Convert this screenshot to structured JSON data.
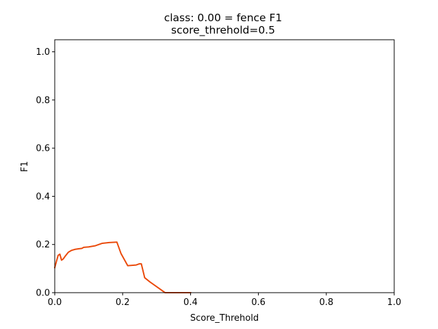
{
  "chart_data": {
    "type": "line",
    "title": "class: 0.00 = fence F1",
    "subtitle": "score_threhold=0.5",
    "xlabel": "Score_Threhold",
    "ylabel": "F1",
    "xlim": [
      0.0,
      1.0
    ],
    "ylim": [
      0.0,
      1.05
    ],
    "x_ticks": [
      0.0,
      0.2,
      0.4,
      0.6,
      0.8,
      1.0
    ],
    "x_tick_labels": [
      "0.0",
      "0.2",
      "0.4",
      "0.6",
      "0.8",
      "1.0"
    ],
    "y_ticks": [
      0.0,
      0.2,
      0.4,
      0.6,
      0.8,
      1.0
    ],
    "y_tick_labels": [
      "0.0",
      "0.2",
      "0.4",
      "0.6",
      "0.8",
      "1.0"
    ],
    "grid": false,
    "series": [
      {
        "color": "#ea4a0b",
        "x": [
          0.0,
          0.005,
          0.01,
          0.015,
          0.02,
          0.025,
          0.03,
          0.04,
          0.05,
          0.06,
          0.07,
          0.08,
          0.085,
          0.1,
          0.12,
          0.14,
          0.16,
          0.183,
          0.195,
          0.215,
          0.24,
          0.25,
          0.255,
          0.265,
          0.28,
          0.3,
          0.325,
          0.35,
          0.37,
          0.4
        ],
        "y": [
          0.104,
          0.13,
          0.155,
          0.16,
          0.135,
          0.14,
          0.15,
          0.168,
          0.176,
          0.18,
          0.182,
          0.184,
          0.188,
          0.19,
          0.195,
          0.205,
          0.208,
          0.21,
          0.163,
          0.112,
          0.115,
          0.12,
          0.12,
          0.062,
          0.045,
          0.025,
          0.0,
          0.0,
          0.0,
          0.0
        ]
      }
    ]
  }
}
